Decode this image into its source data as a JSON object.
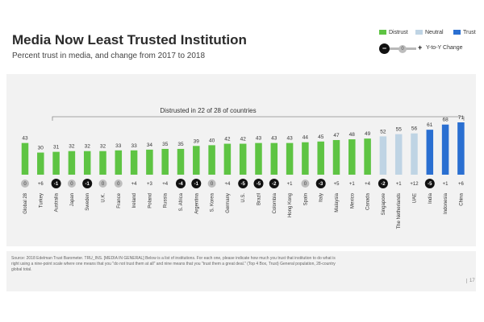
{
  "title": "Media Now Least Trusted Institution",
  "subtitle": "Percent trust in media, and change from 2017 to 2018",
  "legend": {
    "distrust": "Distrust",
    "neutral": "Neutral",
    "trust": "Trust",
    "change_minus": "−",
    "change_zero": "0",
    "change_plus": "+",
    "change_label": "Y-to-Y Change"
  },
  "colors": {
    "distrust": "#5ec443",
    "neutral": "#bfd4e4",
    "trust": "#2a6fd1",
    "negative_marker": "#111111",
    "zero_marker": "#bdbdbd"
  },
  "bracket_label": "Distrusted in 22 of 28 of countries",
  "footnote": "Source: 2018 Edelman Trust Barometer. TRU_INS. [MEDIA IN GENERAL] Below is a list of institutions. For each one, please indicate how much you trust that institution to do what is right using a nine-point scale where one means that you \"do not trust them at all\" and nine means that you \"trust them a great deal.\" (Top 4 Box, Trust) General population, 28-country global total.",
  "page_number": "17",
  "chart_data": {
    "type": "bar",
    "title": "Media Now Least Trusted Institution",
    "subtitle": "Percent trust in media, and change from 2017 to 2018",
    "categories": [
      "Global 28",
      "Turkey",
      "Australia",
      "Japan",
      "Sweden",
      "U.K.",
      "France",
      "Ireland",
      "Poland",
      "Russia",
      "S. Africa",
      "Argentina",
      "S. Korea",
      "Germany",
      "U.S.",
      "Brazil",
      "Colombia",
      "Hong Kong",
      "Spain",
      "Italy",
      "Malaysia",
      "Mexico",
      "Canada",
      "Singapore",
      "The Netherlands",
      "UAE",
      "India",
      "Indonesia",
      "China"
    ],
    "values": [
      43,
      30,
      31,
      32,
      32,
      32,
      33,
      33,
      34,
      35,
      35,
      39,
      40,
      42,
      42,
      43,
      43,
      43,
      44,
      45,
      47,
      48,
      49,
      52,
      55,
      56,
      61,
      68,
      71
    ],
    "changes": [
      "0",
      "+6",
      "-1",
      "0",
      "-1",
      "0",
      "0",
      "+4",
      "+3",
      "+4",
      "-4",
      "-1",
      "0",
      "+4",
      "-5",
      "-5",
      "-2",
      "+1",
      "0",
      "-3",
      "+5",
      "+1",
      "+4",
      "-2",
      "+1",
      "+12",
      "-5",
      "+1",
      "+6"
    ],
    "status": [
      "distrust",
      "distrust",
      "distrust",
      "distrust",
      "distrust",
      "distrust",
      "distrust",
      "distrust",
      "distrust",
      "distrust",
      "distrust",
      "distrust",
      "distrust",
      "distrust",
      "distrust",
      "distrust",
      "distrust",
      "distrust",
      "distrust",
      "distrust",
      "distrust",
      "distrust",
      "distrust",
      "neutral",
      "neutral",
      "neutral",
      "trust",
      "trust",
      "trust"
    ],
    "ylim": [
      0,
      100
    ],
    "xlabel": "",
    "ylabel": "",
    "grid": false,
    "legend_position": "top-right",
    "annotation": "Distrusted in 22 of 28 of countries"
  }
}
